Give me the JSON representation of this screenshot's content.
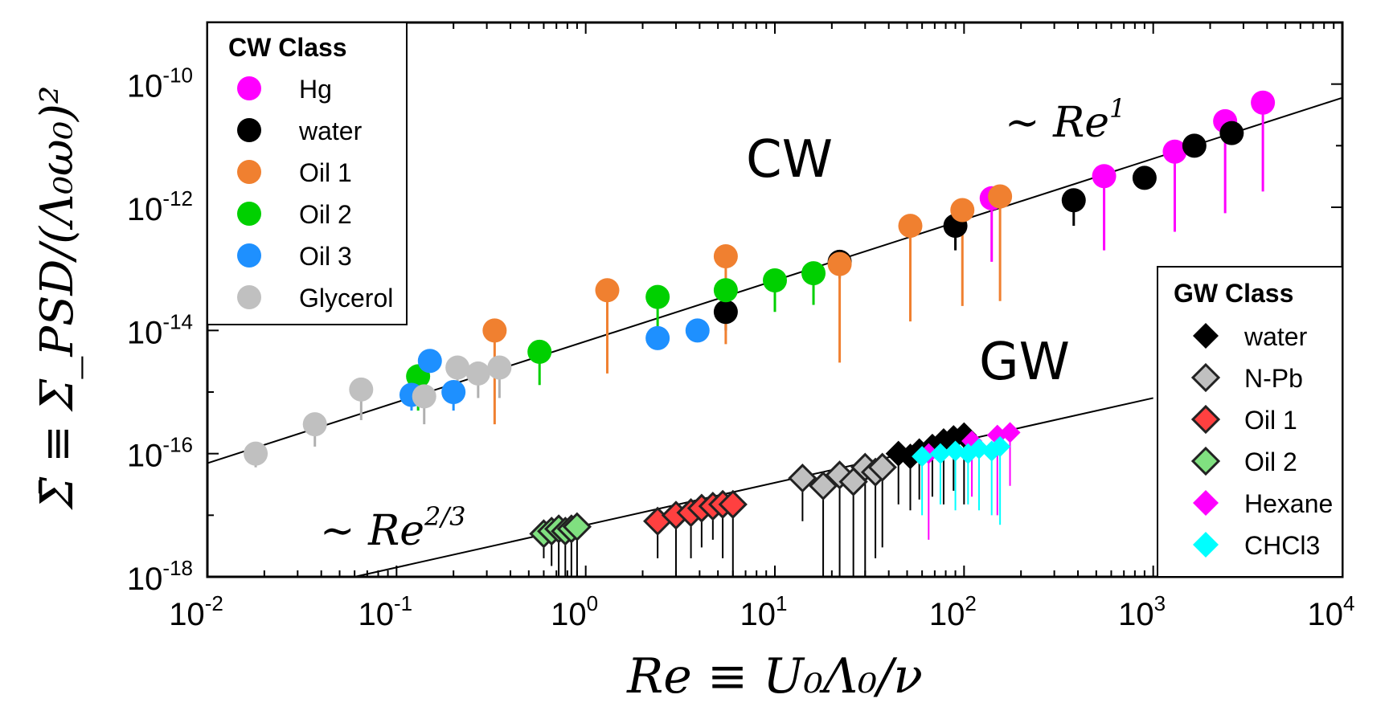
{
  "chart_data": {
    "type": "scatter",
    "x_scale": "log",
    "y_scale": "log",
    "xlim": [
      0.01,
      10000
    ],
    "ylim": [
      1e-18,
      1e-09
    ],
    "xlabel": "Re ≡ U₀Λ₀/ν",
    "ylabel": "Σ̄ ≡ Σ_PSD/(Λ₀ω₀)²",
    "x_ticks": [
      {
        "base": "10",
        "exp": "-2",
        "value": 0.01
      },
      {
        "base": "10",
        "exp": "-1",
        "value": 0.1
      },
      {
        "base": "10",
        "exp": "0",
        "value": 1
      },
      {
        "base": "10",
        "exp": "1",
        "value": 10
      },
      {
        "base": "10",
        "exp": "2",
        "value": 100
      },
      {
        "base": "10",
        "exp": "3",
        "value": 1000
      },
      {
        "base": "10",
        "exp": "4",
        "value": 10000
      }
    ],
    "y_ticks": [
      {
        "base": "10",
        "exp": "-18",
        "value": 1e-18
      },
      {
        "base": "10",
        "exp": "-16",
        "value": 1e-16
      },
      {
        "base": "10",
        "exp": "-14",
        "value": 1e-14
      },
      {
        "base": "10",
        "exp": "-12",
        "value": 1e-12
      },
      {
        "base": "10",
        "exp": "-10",
        "value": 1e-10
      }
    ],
    "annotations": {
      "cw_label": "CW",
      "gw_label": "GW",
      "cw_fit_prefix": "∼ Re",
      "cw_fit_exp": "1",
      "gw_fit_prefix": "∼ Re",
      "gw_fit_exp": "2/3"
    },
    "fit_lines": [
      {
        "name": "CW fit ~ Re^1",
        "x": [
          0.01,
          10000
        ],
        "y": [
          7e-17,
          6e-11
        ]
      },
      {
        "name": "GW fit ~ Re^2/3",
        "x": [
          0.06,
          1000
        ],
        "y": [
          1e-18,
          8e-16
        ]
      }
    ],
    "cw_legend_title": "CW Class",
    "gw_legend_title": "GW Class",
    "cw_series": [
      {
        "name": "Hg",
        "color": "#ff00ff",
        "points": [
          [
            140,
            1.4e-12,
            1.3e-13
          ],
          [
            550,
            3.2e-12,
            2e-13
          ],
          [
            1300,
            8e-12,
            4e-13
          ],
          [
            2400,
            2.5e-11,
            8e-13
          ],
          [
            3800,
            5e-11,
            1.8e-12
          ]
        ]
      },
      {
        "name": "water",
        "color": "#000000",
        "points": [
          [
            5.5,
            2e-14,
            1e-14
          ],
          [
            22,
            1.3e-13,
            7e-14
          ],
          [
            90,
            5e-13,
            2e-13
          ],
          [
            380,
            1.3e-12,
            5e-13
          ],
          [
            900,
            3e-12,
            3e-12
          ],
          [
            1650,
            1e-11,
            1e-11
          ],
          [
            2600,
            1.6e-11,
            1.6e-11
          ]
        ]
      },
      {
        "name": "Oil 1",
        "color": "#f08030",
        "points": [
          [
            0.33,
            1e-14,
            3e-16
          ],
          [
            1.3,
            4.5e-14,
            2e-15
          ],
          [
            5.5,
            1.6e-13,
            6e-15
          ],
          [
            22,
            1.2e-13,
            3e-15
          ],
          [
            52,
            5e-13,
            1.4e-14
          ],
          [
            98,
            9e-13,
            2.5e-14
          ],
          [
            155,
            1.5e-12,
            3e-14
          ]
        ]
      },
      {
        "name": "Oil 2",
        "color": "#00d000",
        "points": [
          [
            0.13,
            1.8e-15,
            5e-16
          ],
          [
            0.57,
            4.5e-15,
            1.3e-15
          ],
          [
            2.4,
            3.5e-14,
            1e-14
          ],
          [
            5.5,
            4.5e-14,
            1.3e-14
          ],
          [
            10,
            6.5e-14,
            2e-14
          ],
          [
            16,
            8.5e-14,
            2.6e-14
          ]
        ]
      },
      {
        "name": "Oil 3",
        "color": "#1e90ff",
        "points": [
          [
            0.12,
            9e-16,
            5e-16
          ],
          [
            0.15,
            3.2e-15,
            3.2e-15
          ],
          [
            0.2,
            1e-15,
            5e-16
          ],
          [
            2.4,
            7.5e-15,
            7.5e-15
          ],
          [
            3.9,
            1e-14,
            1e-14
          ]
        ]
      },
      {
        "name": "Glycerol",
        "color": "#c0c0c0",
        "points": [
          [
            0.018,
            1e-16,
            6e-17
          ],
          [
            0.037,
            3e-16,
            1.3e-16
          ],
          [
            0.065,
            1.1e-15,
            3.5e-16
          ],
          [
            0.14,
            8.5e-16,
            3e-16
          ],
          [
            0.21,
            2.5e-15,
            7e-16
          ],
          [
            0.27,
            2e-15,
            8e-16
          ],
          [
            0.35,
            2.5e-15,
            8e-16
          ]
        ]
      }
    ],
    "gw_series": [
      {
        "name": "water",
        "color": "#000000",
        "points": [
          [
            45,
            1e-16,
            1.5e-17
          ],
          [
            52,
            9e-17,
            1.2e-17
          ],
          [
            58,
            1.1e-16,
            1.8e-17
          ],
          [
            68,
            1.3e-16,
            2e-17
          ],
          [
            78,
            1.6e-16,
            1.5e-17
          ],
          [
            88,
            1.8e-16,
            2.5e-17
          ],
          [
            100,
            2e-16,
            1.5e-17
          ]
        ]
      },
      {
        "name": "N-Pb",
        "color": "#c0c0c0",
        "points": [
          [
            14,
            4e-17,
            8e-18
          ],
          [
            18,
            3e-17,
            1e-18
          ],
          [
            22,
            4.5e-17,
            1e-18
          ],
          [
            26,
            3.5e-17,
            1e-18
          ],
          [
            30,
            6e-17,
            1e-18
          ],
          [
            34,
            5e-17,
            2e-18
          ],
          [
            37,
            6e-17,
            3e-18
          ]
        ]
      },
      {
        "name": "Oil 1",
        "color": "#ff4040",
        "points": [
          [
            2.4,
            8e-18,
            2e-18
          ],
          [
            3,
            1e-17,
            1e-18
          ],
          [
            3.6,
            1.1e-17,
            2e-18
          ],
          [
            4.1,
            1.3e-17,
            3e-18
          ],
          [
            4.7,
            1.4e-17,
            4e-18
          ],
          [
            5.3,
            1.5e-17,
            2e-18
          ],
          [
            6,
            1.5e-17,
            1e-18
          ]
        ]
      },
      {
        "name": "Oil 2",
        "color": "#80e080",
        "points": [
          [
            0.6,
            5e-18,
            2e-18
          ],
          [
            0.66,
            5.5e-18,
            1.5e-18
          ],
          [
            0.72,
            6e-18,
            1e-18
          ],
          [
            0.78,
            5.5e-18,
            1e-18
          ],
          [
            0.84,
            6e-18,
            1e-18
          ],
          [
            0.9,
            6.5e-18,
            1e-18
          ]
        ]
      },
      {
        "name": "Hexane",
        "color": "#ff00ff",
        "points": [
          [
            65,
            1e-16,
            4e-18
          ],
          [
            110,
            1.6e-16,
            2e-17
          ],
          [
            150,
            2e-16,
            1e-17
          ],
          [
            175,
            2.2e-16,
            3e-17
          ]
        ]
      },
      {
        "name": "CHCl3",
        "color": "#00ffff",
        "points": [
          [
            60,
            9e-17,
            1e-17
          ],
          [
            75,
            1e-16,
            1.5e-17
          ],
          [
            90,
            1.1e-16,
            1.2e-17
          ],
          [
            105,
            1e-16,
            1.5e-17
          ],
          [
            120,
            1.2e-16,
            1.2e-17
          ],
          [
            140,
            1.1e-16,
            1e-17
          ],
          [
            155,
            1.3e-16,
            7e-18
          ]
        ]
      }
    ]
  }
}
